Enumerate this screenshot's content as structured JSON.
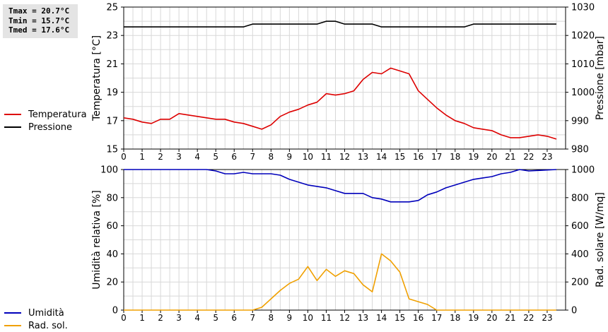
{
  "stats": {
    "tmax": "Tmax = 20.7°C",
    "tmin": "Tmin = 15.7°C",
    "tmed": "Tmed = 17.6°C"
  },
  "colors": {
    "temperature": "#dd0000",
    "pressure": "#000000",
    "humidity": "#0000bb",
    "solar": "#f0a000",
    "grid": "#d8d8d8"
  },
  "chart_data": [
    {
      "type": "line",
      "x_ticks": [
        "0",
        "1",
        "2",
        "3",
        "4",
        "5",
        "6",
        "7",
        "8",
        "9",
        "10",
        "11",
        "12",
        "13",
        "14",
        "15",
        "16",
        "17",
        "18",
        "19",
        "20",
        "21",
        "22",
        "23"
      ],
      "xlim": [
        0,
        24
      ],
      "ylabel": "Temperatura [°C]",
      "ylabel_right": "Pressione [mbar]",
      "ylim": [
        15,
        25
      ],
      "ylim_right": [
        980,
        1030
      ],
      "yticks": [
        "15",
        "17",
        "19",
        "21",
        "23",
        "25"
      ],
      "yticks_right": [
        "980",
        "990",
        "1000",
        "1010",
        "1020",
        "1030"
      ],
      "grid": true,
      "legend": "left",
      "series": [
        {
          "name": "Temperatura",
          "axis": "left",
          "x": [
            0,
            0.5,
            1,
            1.5,
            2,
            2.5,
            3,
            3.5,
            4,
            4.5,
            5,
            5.5,
            6,
            6.5,
            7,
            7.5,
            8,
            8.5,
            9,
            9.5,
            10,
            10.5,
            11,
            11.5,
            12,
            12.5,
            13,
            13.5,
            14,
            14.5,
            15,
            15.5,
            16,
            16.5,
            17,
            17.5,
            18,
            18.5,
            19,
            19.5,
            20,
            20.5,
            21,
            21.5,
            22,
            22.5,
            23,
            23.5
          ],
          "values": [
            17.2,
            17.1,
            16.9,
            16.8,
            17.1,
            17.1,
            17.5,
            17.4,
            17.3,
            17.2,
            17.1,
            17.1,
            16.9,
            16.8,
            16.6,
            16.4,
            16.7,
            17.3,
            17.6,
            17.8,
            18.1,
            18.3,
            18.9,
            18.8,
            18.9,
            19.1,
            19.9,
            20.4,
            20.3,
            20.7,
            20.5,
            20.3,
            19.1,
            18.5,
            17.9,
            17.4,
            17.0,
            16.8,
            16.5,
            16.4,
            16.3,
            16.0,
            15.8,
            15.8,
            15.9,
            16.0,
            15.9,
            15.7
          ]
        },
        {
          "name": "Pressione",
          "axis": "right",
          "x": [
            0,
            6.5,
            7,
            10.5,
            11,
            11.5,
            12,
            13.5,
            14,
            18.5,
            19,
            23.5
          ],
          "values": [
            1023,
            1023,
            1024,
            1024,
            1025,
            1025,
            1024,
            1024,
            1023,
            1023,
            1024,
            1024
          ]
        }
      ]
    },
    {
      "type": "line",
      "x_ticks": [
        "0",
        "1",
        "2",
        "3",
        "4",
        "5",
        "6",
        "7",
        "8",
        "9",
        "10",
        "11",
        "12",
        "13",
        "14",
        "15",
        "16",
        "17",
        "18",
        "19",
        "20",
        "21",
        "22",
        "23"
      ],
      "xlim": [
        0,
        24
      ],
      "ylabel": "Umidità relativa [%]",
      "ylabel_right": "Rad. solare [W/mq]",
      "ylim": [
        0,
        100
      ],
      "ylim_right": [
        0,
        1000
      ],
      "yticks": [
        "0",
        "20",
        "40",
        "60",
        "80",
        "100"
      ],
      "yticks_right": [
        "0",
        "200",
        "400",
        "600",
        "800",
        "1000"
      ],
      "grid": true,
      "legend": "left",
      "series": [
        {
          "name": "Umidità",
          "axis": "left",
          "x": [
            0,
            4.5,
            5,
            5.5,
            6,
            6.5,
            7,
            7.5,
            8,
            8.5,
            9,
            9.5,
            10,
            10.5,
            11,
            11.5,
            12,
            12.5,
            13,
            13.5,
            14,
            14.5,
            15,
            15.5,
            16,
            16.5,
            17,
            17.5,
            18,
            18.5,
            19,
            19.5,
            20,
            20.5,
            21,
            21.5,
            22,
            23.5
          ],
          "values": [
            100,
            100,
            99,
            97,
            97,
            98,
            97,
            97,
            97,
            96,
            93,
            91,
            89,
            88,
            87,
            85,
            83,
            83,
            83,
            80,
            79,
            77,
            77,
            77,
            78,
            82,
            84,
            87,
            89,
            91,
            93,
            94,
            95,
            97,
            98,
            100,
            99,
            100
          ]
        },
        {
          "name": "Rad. sol.",
          "axis": "right",
          "x": [
            0,
            1,
            2,
            3,
            4,
            5,
            6,
            7,
            7.5,
            8,
            8.5,
            9,
            9.5,
            10,
            10.5,
            11,
            11.5,
            12,
            12.5,
            13,
            13.5,
            14,
            14.5,
            15,
            15.5,
            16,
            16.5,
            17,
            18,
            19,
            20,
            21,
            22,
            23,
            23.5
          ],
          "values": [
            0,
            0,
            0,
            0,
            0,
            0,
            0,
            0,
            20,
            80,
            140,
            190,
            220,
            310,
            210,
            290,
            240,
            280,
            260,
            180,
            130,
            400,
            350,
            270,
            80,
            60,
            40,
            0,
            0,
            0,
            0,
            0,
            0,
            0,
            0
          ]
        }
      ]
    }
  ]
}
